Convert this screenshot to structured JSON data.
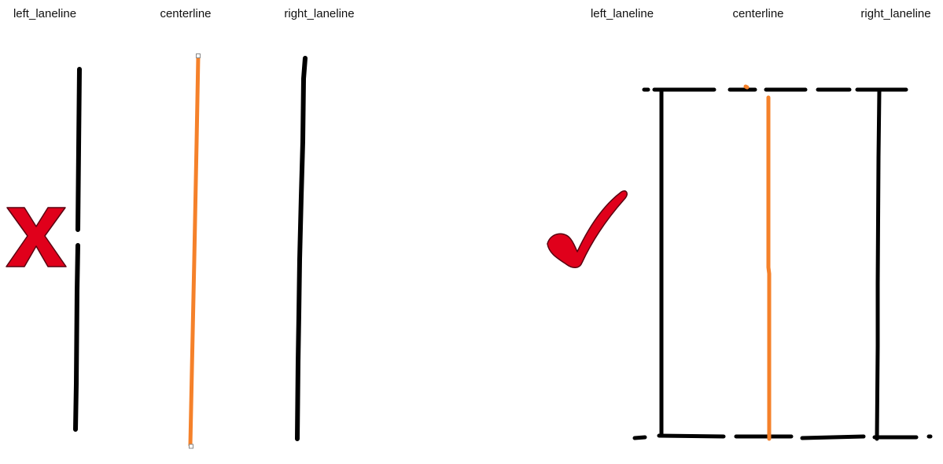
{
  "panels": [
    {
      "id": "invalid",
      "labels": {
        "left": "left_laneline",
        "center": "centerline",
        "right": "right_laneline"
      },
      "verdict_icon": "cross-mark-icon"
    },
    {
      "id": "valid",
      "labels": {
        "left": "left_laneline",
        "center": "centerline",
        "right": "right_laneline"
      },
      "verdict_icon": "check-mark-icon"
    }
  ],
  "colors": {
    "laneline": "#000000",
    "centerline": "#f5812a",
    "verdict_fill": "#e0001b",
    "verdict_outline": "#5a0010",
    "background": "#ffffff"
  }
}
